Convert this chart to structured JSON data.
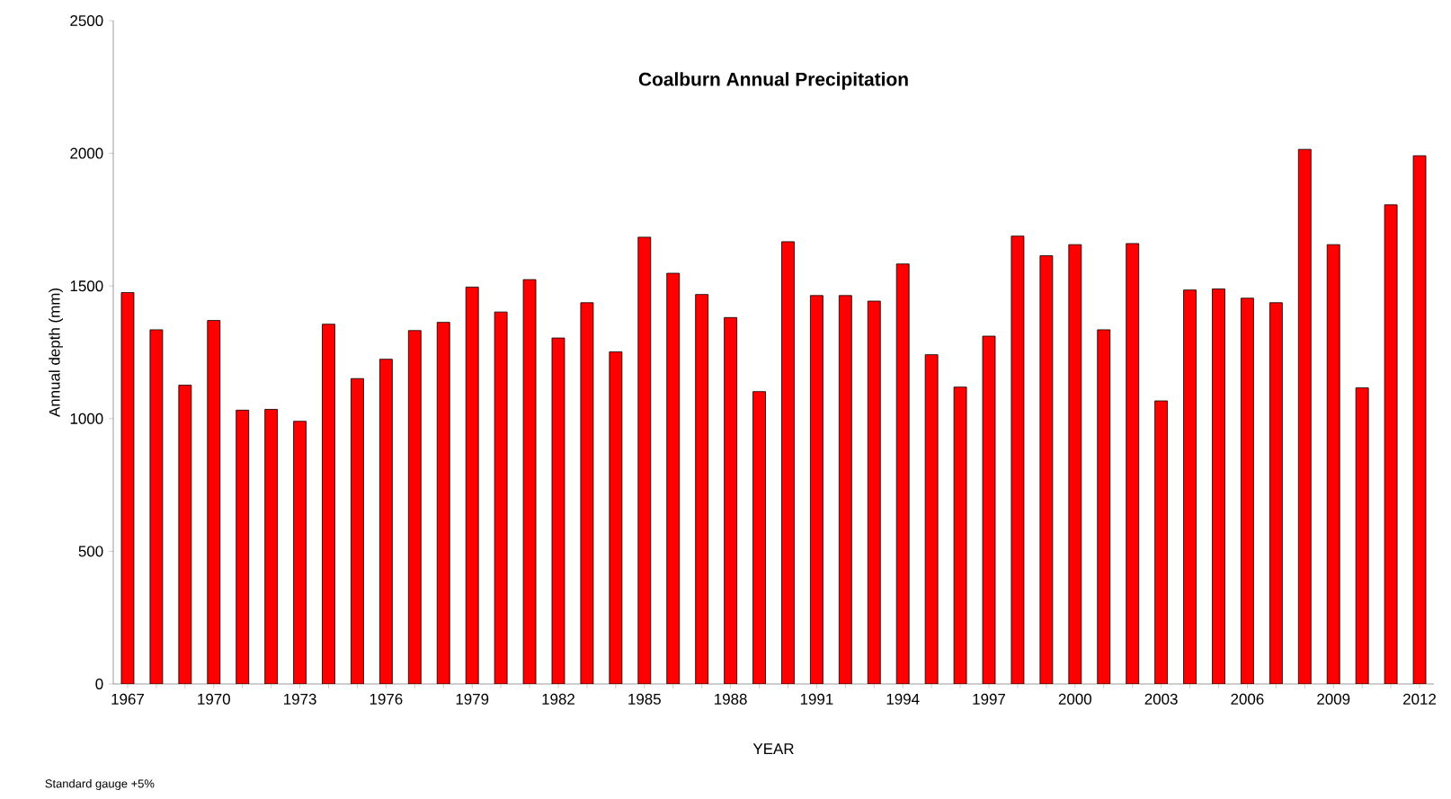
{
  "chart_data": {
    "type": "bar",
    "title": "Coalburn Annual Precipitation",
    "xlabel": "YEAR",
    "ylabel": "Annual depth (mm)",
    "categories": [
      "1967",
      null,
      null,
      "1970",
      null,
      null,
      "1973",
      null,
      null,
      "1976",
      null,
      null,
      "1979",
      null,
      null,
      "1982",
      null,
      null,
      "1985",
      null,
      null,
      "1988",
      null,
      null,
      "1991",
      null,
      null,
      "1994",
      null,
      null,
      "1997",
      null,
      null,
      "2000",
      null,
      null,
      "2003",
      null,
      null,
      "2006",
      null,
      null,
      "2009",
      null,
      null,
      "2012"
    ],
    "values": [
      1475,
      1335,
      1126,
      1370,
      1032,
      1035,
      990,
      1356,
      1151,
      1224,
      1332,
      1363,
      1496,
      1402,
      1524,
      1304,
      1437,
      1252,
      1684,
      1548,
      1468,
      1381,
      1102,
      1667,
      1464,
      1464,
      1443,
      1583,
      1241,
      1119,
      1311,
      1688,
      1614,
      1656,
      1335,
      1660,
      1067,
      1485,
      1489,
      1454,
      1437,
      2015,
      1656,
      1116,
      1806,
      1991
    ],
    "color": "#ff0000",
    "ylim": [
      0,
      2500
    ],
    "yticks": [
      0,
      500,
      1000,
      1500,
      2000,
      2500
    ],
    "annotations": [
      "Standard gauge +5%"
    ]
  }
}
